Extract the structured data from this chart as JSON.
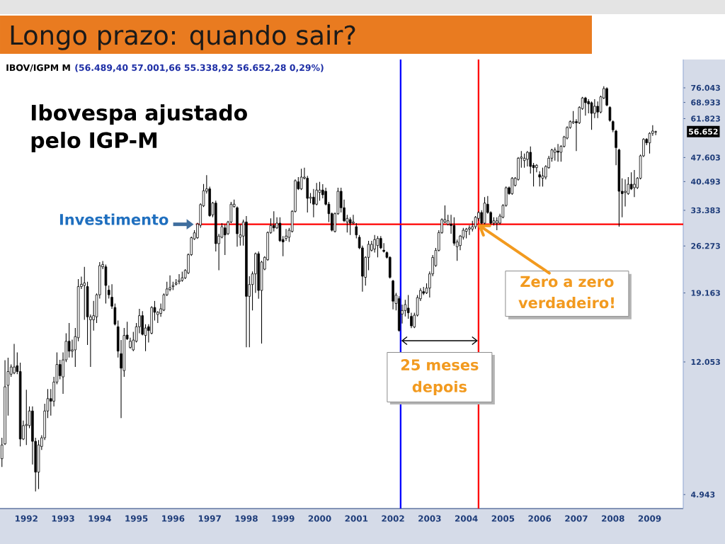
{
  "chart_data": {
    "type": "candlestick",
    "title": "Longo prazo: quando sair?",
    "subtitle": "Ibovespa ajustado pelo IGP-M",
    "x": [
      "1991-11",
      "1991-12",
      "1992-01",
      "1992-02",
      "1992-03",
      "1992-04",
      "1992-05",
      "1992-06",
      "1992-07",
      "1992-08",
      "1992-09",
      "1992-10",
      "1992-11",
      "1992-12",
      "1993-01",
      "1993-02",
      "1993-03",
      "1993-04",
      "1993-05",
      "1993-06",
      "1993-07",
      "1993-08",
      "1993-09",
      "1993-10",
      "1993-11",
      "1993-12",
      "1994-01",
      "1994-02",
      "1994-03",
      "1994-04",
      "1994-05",
      "1994-06",
      "1994-07",
      "1994-08",
      "1994-09",
      "1994-10",
      "1994-11",
      "1994-12",
      "1995-01",
      "1995-02",
      "1995-03",
      "1995-04",
      "1995-05",
      "1995-06",
      "1995-07",
      "1995-08",
      "1995-09",
      "1995-10",
      "1995-11",
      "1995-12",
      "1996-01",
      "1996-02",
      "1996-03",
      "1996-04",
      "1996-05",
      "1996-06",
      "1996-07",
      "1996-08",
      "1996-09",
      "1996-10",
      "1996-11",
      "1996-12",
      "1997-01",
      "1997-02",
      "1997-03",
      "1997-04",
      "1997-05",
      "1997-06",
      "1997-07",
      "1997-08",
      "1997-09",
      "1997-10",
      "1997-11",
      "1997-12",
      "1998-01",
      "1998-02",
      "1998-03",
      "1998-04",
      "1998-05",
      "1998-06",
      "1998-07",
      "1998-08",
      "1998-09",
      "1998-10",
      "1998-11",
      "1998-12",
      "1999-01",
      "1999-02",
      "1999-03",
      "1999-04",
      "1999-05",
      "1999-06",
      "1999-07",
      "1999-08",
      "1999-09",
      "1999-10",
      "1999-11",
      "1999-12",
      "2000-01",
      "2000-02",
      "2000-03",
      "2000-04",
      "2000-05",
      "2000-06",
      "2000-07",
      "2000-08",
      "2000-09",
      "2000-10",
      "2000-11",
      "2000-12",
      "2001-01",
      "2001-02",
      "2001-03",
      "2001-04",
      "2001-05",
      "2001-06",
      "2001-07",
      "2001-08",
      "2001-09",
      "2001-10",
      "2001-11",
      "2001-12",
      "2002-01",
      "2002-02",
      "2002-03",
      "2002-04",
      "2002-05",
      "2002-06",
      "2002-07",
      "2002-08",
      "2002-09",
      "2002-10",
      "2002-11",
      "2002-12",
      "2003-01",
      "2003-02",
      "2003-03",
      "2003-04",
      "2003-05",
      "2003-06",
      "2003-07",
      "2003-08",
      "2003-09",
      "2003-10",
      "2003-11",
      "2003-12",
      "2004-01",
      "2004-02",
      "2004-03",
      "2004-04",
      "2004-05",
      "2004-06",
      "2004-07",
      "2004-08",
      "2004-09",
      "2004-10",
      "2004-11",
      "2004-12",
      "2005-01",
      "2005-02",
      "2005-03",
      "2005-04",
      "2005-05",
      "2005-06",
      "2005-07",
      "2005-08",
      "2005-09",
      "2005-10",
      "2005-11",
      "2005-12",
      "2006-01",
      "2006-02",
      "2006-03",
      "2006-04",
      "2006-05",
      "2006-06",
      "2006-07",
      "2006-08",
      "2006-09",
      "2006-10",
      "2006-11",
      "2006-12",
      "2007-01",
      "2007-02",
      "2007-03",
      "2007-04",
      "2007-05",
      "2007-06",
      "2007-07",
      "2007-08",
      "2007-09",
      "2007-10",
      "2007-11",
      "2007-12",
      "2008-01",
      "2008-02",
      "2008-03",
      "2008-04",
      "2008-05",
      "2008-06",
      "2008-07",
      "2008-08",
      "2008-09",
      "2008-10",
      "2008-11",
      "2008-12",
      "2009-01",
      "2009-02",
      "2009-03",
      "2009-04",
      "2009-05",
      "2009-06",
      "2009-07",
      "2009-08",
      "2009-09"
    ],
    "ohlc": [
      [
        6290,
        7240,
        5950,
        6900
      ],
      [
        6950,
        12200,
        6900,
        10200
      ],
      [
        10300,
        12400,
        8400,
        11300
      ],
      [
        11100,
        11850,
        10900,
        11650
      ],
      [
        11200,
        13600,
        11100,
        11650
      ],
      [
        11750,
        12850,
        11100,
        11300
      ],
      [
        11300,
        12000,
        6830,
        7180
      ],
      [
        7180,
        8130,
        7130,
        7860
      ],
      [
        7860,
        10000,
        6900,
        7920
      ],
      [
        7860,
        8940,
        7720,
        8670
      ],
      [
        8670,
        8940,
        6050,
        7070
      ],
      [
        7070,
        7240,
        5050,
        5750
      ],
      [
        5750,
        7130,
        5130,
        6900
      ],
      [
        6830,
        7360,
        6670,
        7240
      ],
      [
        7240,
        9100,
        7130,
        8670
      ],
      [
        8670,
        10050,
        8260,
        9420
      ],
      [
        9420,
        10050,
        8400,
        9260
      ],
      [
        9260,
        10900,
        8940,
        10530
      ],
      [
        10530,
        12850,
        10370,
        11850
      ],
      [
        11850,
        12220,
        10720,
        10990
      ],
      [
        10900,
        12850,
        9730,
        12220
      ],
      [
        12220,
        14620,
        12030,
        13850
      ],
      [
        13850,
        15660,
        12410,
        12960
      ],
      [
        12960,
        14000,
        12410,
        13070
      ],
      [
        13070,
        15140,
        11660,
        14290
      ],
      [
        14180,
        21030,
        13850,
        20000
      ],
      [
        20000,
        21390,
        19690,
        20310
      ],
      [
        20150,
        22840,
        16000,
        20490
      ],
      [
        20000,
        20670,
        13510,
        16320
      ],
      [
        16000,
        16580,
        11660,
        16320
      ],
      [
        16000,
        18160,
        14880,
        16450
      ],
      [
        16320,
        19100,
        15660,
        18930
      ],
      [
        18930,
        23570,
        18450,
        23020
      ],
      [
        22840,
        23750,
        22480,
        23200
      ],
      [
        22840,
        23200,
        17840,
        20150
      ],
      [
        19530,
        20150,
        18450,
        18930
      ],
      [
        18620,
        20310,
        17230,
        17530
      ],
      [
        17380,
        17840,
        15400,
        15530
      ],
      [
        15270,
        15920,
        12410,
        12960
      ],
      [
        12740,
        13960,
        8260,
        11560
      ],
      [
        11370,
        15140,
        10910,
        14400
      ],
      [
        14440,
        15790,
        13960,
        14070
      ],
      [
        13290,
        14180,
        13180,
        13850
      ],
      [
        13070,
        14750,
        12960,
        13960
      ],
      [
        13850,
        15660,
        13740,
        15270
      ],
      [
        15270,
        17230,
        14620,
        16450
      ],
      [
        16450,
        16960,
        14400,
        14510
      ],
      [
        14400,
        15530,
        12960,
        15140
      ],
      [
        15270,
        15530,
        13740,
        14880
      ],
      [
        14620,
        17530,
        14510,
        17380
      ],
      [
        17380,
        18160,
        15920,
        16830
      ],
      [
        16580,
        16960,
        15660,
        16830
      ],
      [
        16700,
        17840,
        16320,
        17230
      ],
      [
        17080,
        19100,
        16960,
        18930
      ],
      [
        18930,
        20670,
        18770,
        19690
      ],
      [
        19630,
        21570,
        19380,
        19860
      ],
      [
        20000,
        20670,
        19530,
        20150
      ],
      [
        20310,
        21030,
        20150,
        20490
      ],
      [
        20670,
        21750,
        20310,
        20850
      ],
      [
        20850,
        22120,
        20670,
        21210
      ],
      [
        21210,
        22480,
        21030,
        22300
      ],
      [
        21930,
        25000,
        21750,
        24780
      ],
      [
        24780,
        27990,
        24570,
        27770
      ],
      [
        27560,
        29210,
        27350,
        28700
      ],
      [
        27770,
        30720,
        27560,
        30460
      ],
      [
        30200,
        35010,
        29710,
        34710
      ],
      [
        34410,
        39850,
        34120,
        38080
      ],
      [
        37970,
        42300,
        37370,
        38560
      ],
      [
        38560,
        39150,
        31970,
        32220
      ],
      [
        32380,
        35340,
        31870,
        35060
      ],
      [
        35060,
        35620,
        25330,
        26690
      ],
      [
        26690,
        28530,
        22310,
        28080
      ],
      [
        27860,
        30630,
        27640,
        29910
      ],
      [
        29670,
        30390,
        24730,
        28300
      ],
      [
        28530,
        31120,
        28300,
        30870
      ],
      [
        30870,
        35340,
        30630,
        34790
      ],
      [
        34240,
        35900,
        33970,
        34790
      ],
      [
        33970,
        34240,
        26150,
        28530
      ],
      [
        27860,
        30390,
        26350,
        28300
      ],
      [
        28080,
        31370,
        26350,
        30870
      ],
      [
        30870,
        32130,
        13300,
        18730
      ],
      [
        18730,
        21440,
        13300,
        20280
      ],
      [
        20280,
        22130,
        17030,
        21780
      ],
      [
        21780,
        25130,
        19180,
        24940
      ],
      [
        24940,
        25330,
        18440,
        19490
      ],
      [
        19490,
        23770,
        13640,
        23580
      ],
      [
        22480,
        24530,
        22310,
        24340
      ],
      [
        23960,
        28980,
        23770,
        28750
      ],
      [
        28750,
        31620,
        28530,
        30150
      ],
      [
        30150,
        33160,
        28980,
        29670
      ],
      [
        29670,
        31870,
        29440,
        30630
      ],
      [
        30630,
        31870,
        27000,
        27210
      ],
      [
        27430,
        28080,
        24530,
        27000
      ],
      [
        27640,
        29440,
        27210,
        28080
      ],
      [
        27860,
        29670,
        27000,
        29210
      ],
      [
        28980,
        33420,
        28750,
        33160
      ],
      [
        33160,
        41080,
        32900,
        40750
      ],
      [
        40430,
        41740,
        38260,
        38560
      ],
      [
        38560,
        44120,
        38260,
        41740
      ],
      [
        41410,
        44480,
        41080,
        41740
      ],
      [
        41410,
        42070,
        32900,
        36190
      ],
      [
        36190,
        37500,
        35000,
        36470
      ],
      [
        36470,
        38560,
        31870,
        34790
      ],
      [
        34790,
        40110,
        34520,
        38260
      ],
      [
        37660,
        40430,
        35620,
        38260
      ],
      [
        38260,
        39790,
        36190,
        37070
      ],
      [
        37950,
        38870,
        34520,
        34790
      ],
      [
        34790,
        35340,
        30870,
        32640
      ],
      [
        32640,
        32900,
        28980,
        29210
      ],
      [
        28980,
        32900,
        28750,
        32640
      ],
      [
        32640,
        38870,
        32380,
        37950
      ],
      [
        37950,
        38870,
        32900,
        33970
      ],
      [
        33970,
        35900,
        30870,
        31120
      ],
      [
        30870,
        32380,
        28750,
        31620
      ],
      [
        31370,
        31870,
        28300,
        30630
      ],
      [
        30630,
        32380,
        30390,
        30870
      ],
      [
        29910,
        30630,
        27640,
        28300
      ],
      [
        27860,
        28300,
        25730,
        25940
      ],
      [
        25940,
        26350,
        19340,
        21440
      ],
      [
        21280,
        24530,
        20120,
        24340
      ],
      [
        24340,
        27210,
        22310,
        26570
      ],
      [
        25530,
        27210,
        25330,
        26570
      ],
      [
        25730,
        28300,
        25130,
        27430
      ],
      [
        26350,
        28080,
        24340,
        27640
      ],
      [
        27640,
        28080,
        25730,
        25940
      ],
      [
        25530,
        26780,
        25130,
        25330
      ],
      [
        25130,
        25330,
        24150,
        24340
      ],
      [
        24340,
        24530,
        21110,
        21280
      ],
      [
        20770,
        20940,
        17160,
        18130
      ],
      [
        17850,
        19180,
        17030,
        18880
      ],
      [
        18440,
        18730,
        14770,
        14890
      ],
      [
        16630,
        17720,
        15610,
        17030
      ],
      [
        17030,
        18290,
        16370,
        17720
      ],
      [
        17310,
        18890,
        16110,
        16770
      ],
      [
        16370,
        16770,
        15120,
        15360
      ],
      [
        15240,
        16770,
        15120,
        16500
      ],
      [
        16500,
        18890,
        16370,
        18580
      ],
      [
        18430,
        19800,
        18150,
        19490
      ],
      [
        19330,
        19960,
        18890,
        19120
      ],
      [
        19180,
        20440,
        19040,
        19800
      ],
      [
        19800,
        22130,
        18580,
        21780
      ],
      [
        21780,
        24730,
        21440,
        24330
      ],
      [
        23030,
        25930,
        22840,
        25520
      ],
      [
        25520,
        29210,
        25320,
        28750
      ],
      [
        28750,
        31620,
        28520,
        31370
      ],
      [
        30870,
        34500,
        30630,
        31370
      ],
      [
        30390,
        32380,
        30150,
        31120
      ],
      [
        30390,
        32380,
        28520,
        30150
      ],
      [
        30150,
        31870,
        26350,
        26770
      ],
      [
        26140,
        27420,
        23770,
        26990
      ],
      [
        26350,
        28300,
        25520,
        28080
      ],
      [
        27860,
        29670,
        27420,
        29210
      ],
      [
        28980,
        29670,
        27640,
        29440
      ],
      [
        29440,
        30150,
        28300,
        29670
      ],
      [
        29440,
        31120,
        28980,
        29910
      ],
      [
        29910,
        32130,
        29440,
        31870
      ],
      [
        31620,
        33160,
        31120,
        32900
      ],
      [
        32900,
        33420,
        30390,
        30630
      ],
      [
        30630,
        36470,
        30150,
        35060
      ],
      [
        34780,
        36760,
        32640,
        32900
      ],
      [
        32900,
        33160,
        30390,
        30630
      ],
      [
        30630,
        31870,
        30150,
        31120
      ],
      [
        30630,
        31870,
        29210,
        31120
      ],
      [
        30630,
        32640,
        30390,
        32130
      ],
      [
        31870,
        34780,
        31620,
        34500
      ],
      [
        34500,
        39170,
        34230,
        38870
      ],
      [
        38870,
        39170,
        37050,
        37350
      ],
      [
        37350,
        41750,
        37050,
        41410
      ],
      [
        39490,
        41750,
        39170,
        41410
      ],
      [
        41090,
        47770,
        40760,
        47390
      ],
      [
        47390,
        49700,
        44470,
        47770
      ],
      [
        46640,
        48920,
        44480,
        47390
      ],
      [
        47020,
        49700,
        44830,
        49310
      ],
      [
        49310,
        51310,
        42750,
        44830
      ],
      [
        45190,
        45910,
        39170,
        44480
      ],
      [
        44480,
        45550,
        43090,
        45190
      ],
      [
        42410,
        43430,
        39170,
        41740
      ],
      [
        41410,
        44480,
        39170,
        42080
      ],
      [
        41740,
        45190,
        41080,
        44830
      ],
      [
        44480,
        48150,
        44130,
        47390
      ],
      [
        47390,
        50490,
        46270,
        50090
      ],
      [
        49310,
        50890,
        46640,
        50090
      ],
      [
        49700,
        52170,
        46270,
        49310
      ],
      [
        49310,
        51720,
        46270,
        51310
      ],
      [
        51310,
        55110,
        50890,
        54670
      ],
      [
        54240,
        58710,
        53800,
        58240
      ],
      [
        58240,
        61080,
        57780,
        60600
      ],
      [
        60120,
        65090,
        59650,
        60600
      ],
      [
        60600,
        61570,
        49700,
        60120
      ],
      [
        60120,
        67190,
        59650,
        66660
      ],
      [
        66130,
        71590,
        65610,
        71030
      ],
      [
        71030,
        71590,
        63050,
        68810
      ],
      [
        69380,
        70470,
        64070,
        68260
      ],
      [
        68810,
        69380,
        57330,
        64070
      ],
      [
        64070,
        70470,
        62060,
        67190
      ],
      [
        67190,
        69380,
        62060,
        64620
      ],
      [
        64620,
        72160,
        64070,
        71590
      ],
      [
        71030,
        76870,
        70470,
        75670
      ],
      [
        75670,
        76270,
        67190,
        67720
      ],
      [
        66660,
        67190,
        60600,
        61080
      ],
      [
        60600,
        61080,
        56430,
        57330
      ],
      [
        56880,
        57330,
        45190,
        50890
      ],
      [
        50090,
        50490,
        29910,
        37950
      ],
      [
        37950,
        41410,
        31870,
        37350
      ],
      [
        37650,
        41080,
        34240,
        37950
      ],
      [
        37350,
        41740,
        37050,
        39790
      ],
      [
        39790,
        43090,
        38260,
        38560
      ],
      [
        38870,
        43770,
        36470,
        39790
      ],
      [
        38870,
        41740,
        38560,
        41410
      ],
      [
        41410,
        48530,
        41080,
        48150
      ],
      [
        48150,
        54240,
        47770,
        53800
      ],
      [
        53800,
        54240,
        51720,
        52540
      ],
      [
        52540,
        56430,
        48920,
        56010
      ],
      [
        56010,
        59190,
        55110,
        56880
      ],
      [
        56489.4,
        57001.66,
        55338.92,
        56652.28
      ]
    ],
    "series": [
      {
        "type": "line",
        "name": "Investimento",
        "color": "#ff0000",
        "x": [
          "1997-02-15",
          "2010-06-01"
        ],
        "values": [
          30400,
          30400
        ]
      }
    ],
    "xlim": [
      "1991-10-12",
      "2010-06-01"
    ],
    "xticks": [
      {
        "value": "1992-07-01",
        "label": "1992"
      },
      {
        "value": "1993-07-01",
        "label": "1993"
      },
      {
        "value": "1994-07-01",
        "label": "1994"
      },
      {
        "value": "1995-07-01",
        "label": "1995"
      },
      {
        "value": "1996-07-01",
        "label": "1996"
      },
      {
        "value": "1997-07-01",
        "label": "1997"
      },
      {
        "value": "1998-07-01",
        "label": "1998"
      },
      {
        "value": "1999-07-01",
        "label": "1999"
      },
      {
        "value": "2000-07-01",
        "label": "2000"
      },
      {
        "value": "2001-07-01",
        "label": "2001"
      },
      {
        "value": "2002-07-01",
        "label": "2002"
      },
      {
        "value": "2003-07-01",
        "label": "2003"
      },
      {
        "value": "2004-07-01",
        "label": "2004"
      },
      {
        "value": "2005-07-01",
        "label": "2005"
      },
      {
        "value": "2006-07-01",
        "label": "2006"
      },
      {
        "value": "2007-07-01",
        "label": "2007"
      },
      {
        "value": "2008-07-01",
        "label": "2008"
      },
      {
        "value": "2009-07-01",
        "label": "2009"
      }
    ],
    "ylim": [
      4500,
      92000
    ],
    "yticks": [
      {
        "value": 4943,
        "label": "4.943"
      },
      {
        "value": 12053,
        "label": "12.053"
      },
      {
        "value": 19163,
        "label": "19.163"
      },
      {
        "value": 26273,
        "label": "26.273"
      },
      {
        "value": 33383,
        "label": "33.383"
      },
      {
        "value": 40493,
        "label": "40.493"
      },
      {
        "value": 47603,
        "label": "47.603"
      },
      {
        "value": 61823,
        "label": "61.823"
      },
      {
        "value": 68933,
        "label": "68.933"
      },
      {
        "value": 76043,
        "label": "76.043"
      }
    ],
    "log": true,
    "ref_lines": [
      {
        "axis": "x",
        "value": "2002-09-16",
        "color": "#0000ff"
      },
      {
        "axis": "x",
        "value": "2004-11",
        "color": "#ff0000"
      }
    ],
    "annotations": [
      "IBOV/IGPM M",
      "(56.489,40 57.001,66 55.338,92 56.652,28 0,29%)",
      "56.652",
      {
        "text": "Zero a zero verdadeiro!",
        "x": "2004-11",
        "y": 30400
      },
      "25 meses depois"
    ]
  }
}
